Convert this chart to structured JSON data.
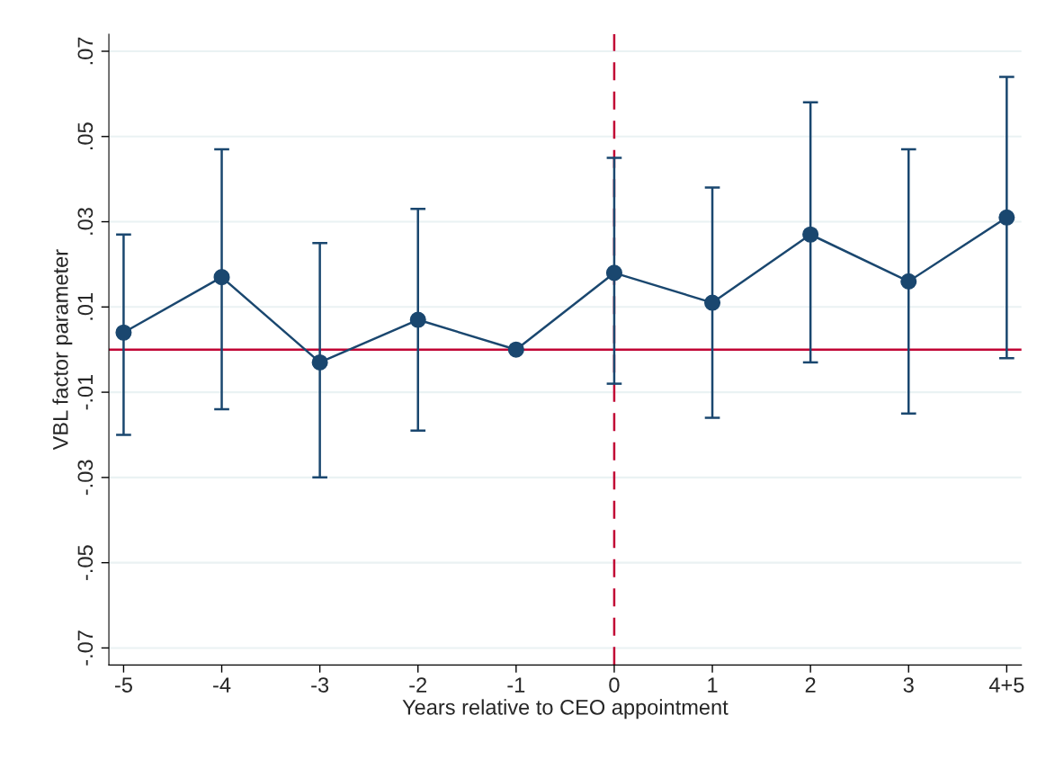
{
  "chart_data": {
    "type": "line",
    "xlabel": "Years relative to CEO appointment",
    "ylabel": "VBL factor parameter",
    "categories": [
      "-5",
      "-4",
      "-3",
      "-2",
      "-1",
      "0",
      "1",
      "2",
      "3",
      "4+5"
    ],
    "series": [
      {
        "color": "#1a476f",
        "values": [
          0.004,
          0.017,
          -0.003,
          0.007,
          0.0,
          0.018,
          0.011,
          0.027,
          0.016,
          0.031
        ],
        "errors": [
          [
            -0.02,
            0.027
          ],
          [
            -0.014,
            0.047
          ],
          [
            -0.03,
            0.025
          ],
          [
            -0.019,
            0.033
          ],
          null,
          [
            -0.008,
            0.045
          ],
          [
            -0.016,
            0.038
          ],
          [
            -0.003,
            0.058
          ],
          [
            -0.015,
            0.047
          ],
          [
            -0.002,
            0.064
          ]
        ]
      }
    ],
    "ylim": [
      -0.074,
      0.074
    ],
    "yticks": [
      {
        "value": -0.07,
        "label": "-.07"
      },
      {
        "value": -0.05,
        "label": "-.05"
      },
      {
        "value": -0.03,
        "label": "-.03"
      },
      {
        "value": -0.01,
        "label": "-.01"
      },
      {
        "value": 0.01,
        "label": ".01"
      },
      {
        "value": 0.03,
        "label": ".03"
      },
      {
        "value": 0.05,
        "label": ".05"
      },
      {
        "value": 0.07,
        "label": ".07"
      }
    ],
    "grid": "y",
    "marker": "circle",
    "line_style": "solid",
    "ref_lines": [
      {
        "axis": "y",
        "value": 0,
        "color": "#c10534",
        "line_style": "solid"
      },
      {
        "axis": "x",
        "value": "0",
        "color": "#c10534",
        "line_style": "dashed"
      }
    ]
  }
}
